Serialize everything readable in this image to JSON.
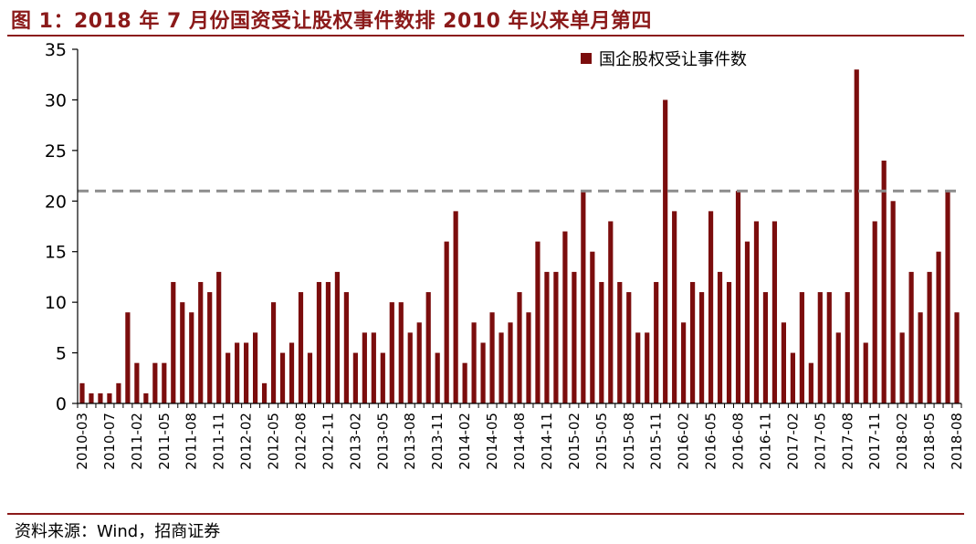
{
  "title": "图 1：2018 年 7 月份国资受让股权事件数排 2010 年以来单月第四",
  "source": "资料来源：Wind，招商证券",
  "colors": {
    "bar": "#7B0D0D",
    "accent": "#8B1A1A",
    "reference_line": "#8C8C8C"
  },
  "chart_data": {
    "type": "bar",
    "legend": {
      "label": "国企股权受让事件数",
      "position": "top-right"
    },
    "ylim": [
      0,
      35
    ],
    "yticks": [
      0,
      5,
      10,
      15,
      20,
      25,
      30,
      35
    ],
    "reference_line": 21,
    "xtick_labels": [
      "2010-03",
      "2010-07",
      "2011-02",
      "2011-05",
      "2011-08",
      "2011-11",
      "2012-02",
      "2012-05",
      "2012-08",
      "2012-11",
      "2013-02",
      "2013-05",
      "2013-08",
      "2013-11",
      "2014-02",
      "2014-05",
      "2014-08",
      "2014-11",
      "2015-02",
      "2015-05",
      "2015-08",
      "2015-11",
      "2016-02",
      "2016-05",
      "2016-08",
      "2016-11",
      "2017-02",
      "2017-05",
      "2017-08",
      "2017-11",
      "2018-02",
      "2018-05",
      "2018-08"
    ],
    "values": [
      2,
      1,
      1,
      1,
      2,
      9,
      4,
      1,
      4,
      4,
      12,
      10,
      9,
      12,
      11,
      13,
      5,
      6,
      6,
      7,
      2,
      10,
      5,
      6,
      11,
      5,
      12,
      12,
      13,
      11,
      5,
      7,
      7,
      5,
      10,
      10,
      7,
      8,
      11,
      5,
      16,
      19,
      4,
      8,
      6,
      9,
      7,
      8,
      11,
      9,
      16,
      13,
      13,
      17,
      13,
      21,
      15,
      12,
      18,
      12,
      11,
      7,
      7,
      12,
      30,
      19,
      8,
      12,
      11,
      19,
      13,
      12,
      21,
      16,
      18,
      11,
      18,
      8,
      5,
      11,
      4,
      11,
      11,
      7,
      11,
      33,
      6,
      18,
      24,
      20,
      7,
      13,
      9,
      13,
      15,
      21,
      9
    ]
  }
}
